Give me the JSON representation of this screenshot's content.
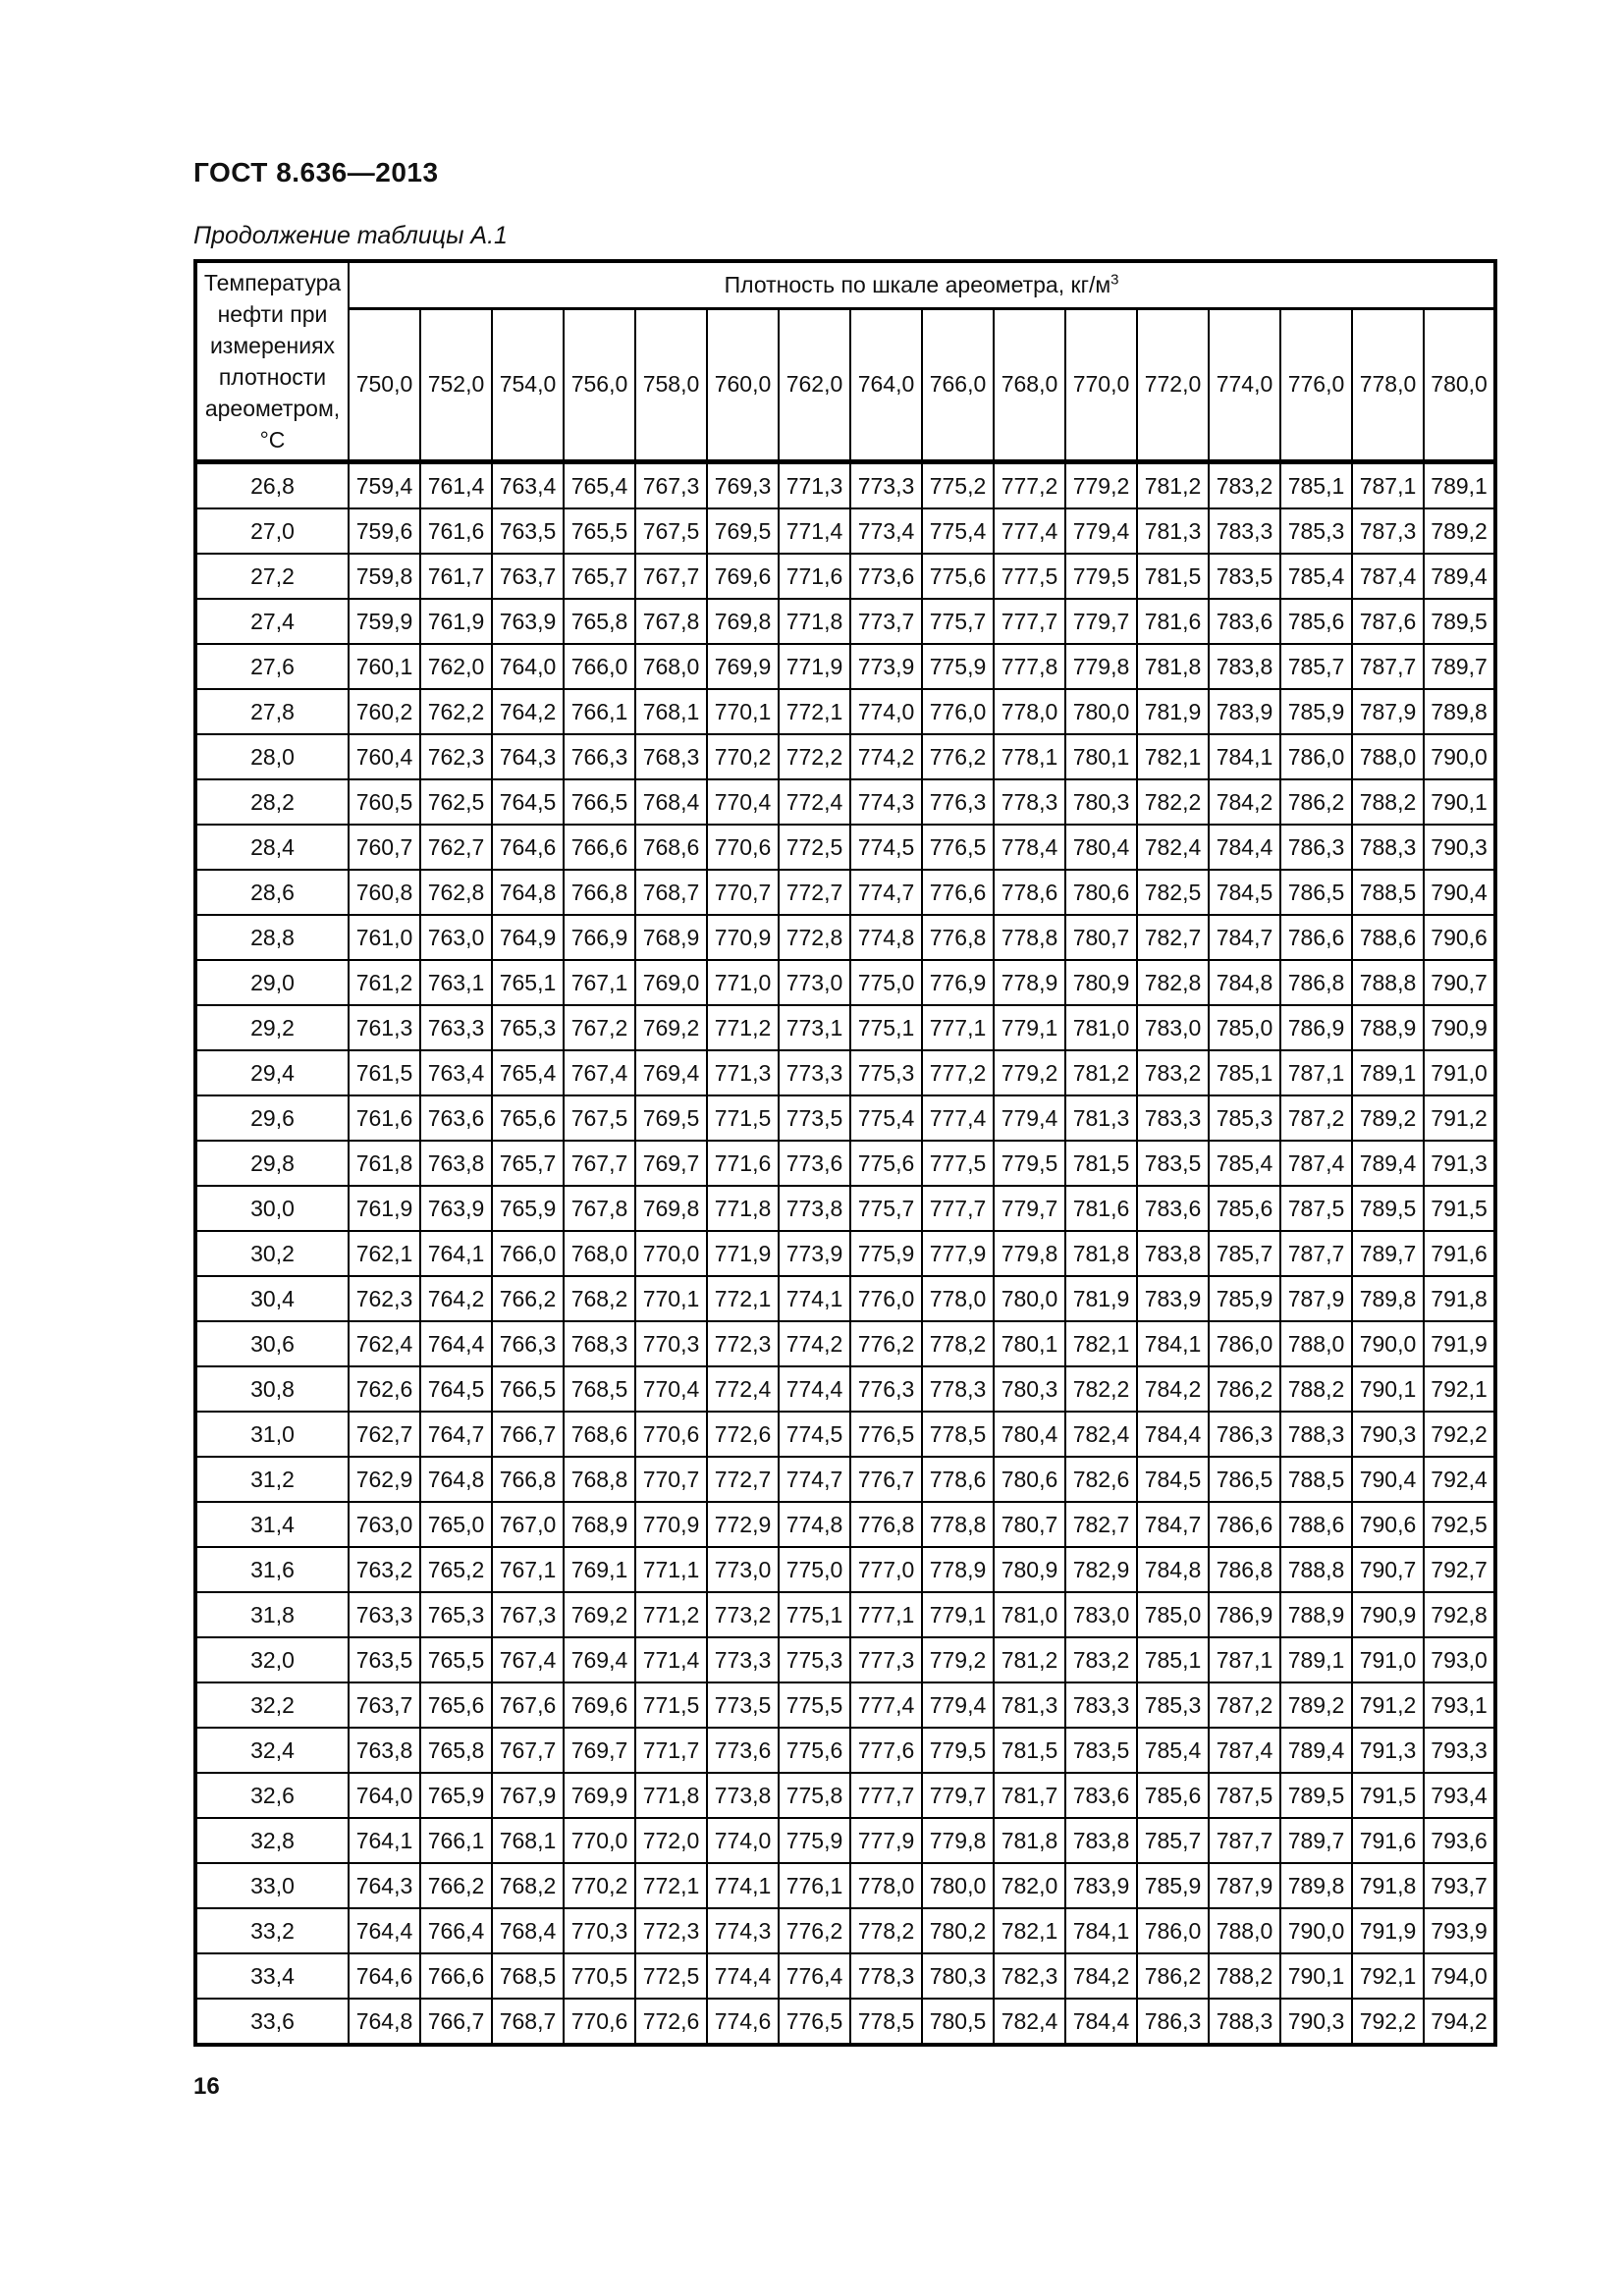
{
  "page": {
    "standard_code": "ГОСТ 8.636—2013",
    "table_caption": "Продолжение таблицы А.1",
    "page_number": "16"
  },
  "table": {
    "temp_header": "Температура нефти при измерениях плотности ареометром, °С",
    "density_header_text": "Плотность по шкале ареометра, кг/м",
    "density_header_sup": "3",
    "density_columns": [
      "750,0",
      "752,0",
      "754,0",
      "756,0",
      "758,0",
      "760,0",
      "762,0",
      "764,0",
      "766,0",
      "768,0",
      "770,0",
      "772,0",
      "774,0",
      "776,0",
      "778,0",
      "780,0"
    ],
    "rows": [
      {
        "temp": "26,8",
        "values": [
          "759,4",
          "761,4",
          "763,4",
          "765,4",
          "767,3",
          "769,3",
          "771,3",
          "773,3",
          "775,2",
          "777,2",
          "779,2",
          "781,2",
          "783,2",
          "785,1",
          "787,1",
          "789,1"
        ]
      },
      {
        "temp": "27,0",
        "values": [
          "759,6",
          "761,6",
          "763,5",
          "765,5",
          "767,5",
          "769,5",
          "771,4",
          "773,4",
          "775,4",
          "777,4",
          "779,4",
          "781,3",
          "783,3",
          "785,3",
          "787,3",
          "789,2"
        ]
      },
      {
        "temp": "27,2",
        "values": [
          "759,8",
          "761,7",
          "763,7",
          "765,7",
          "767,7",
          "769,6",
          "771,6",
          "773,6",
          "775,6",
          "777,5",
          "779,5",
          "781,5",
          "783,5",
          "785,4",
          "787,4",
          "789,4"
        ]
      },
      {
        "temp": "27,4",
        "values": [
          "759,9",
          "761,9",
          "763,9",
          "765,8",
          "767,8",
          "769,8",
          "771,8",
          "773,7",
          "775,7",
          "777,7",
          "779,7",
          "781,6",
          "783,6",
          "785,6",
          "787,6",
          "789,5"
        ]
      },
      {
        "temp": "27,6",
        "values": [
          "760,1",
          "762,0",
          "764,0",
          "766,0",
          "768,0",
          "769,9",
          "771,9",
          "773,9",
          "775,9",
          "777,8",
          "779,8",
          "781,8",
          "783,8",
          "785,7",
          "787,7",
          "789,7"
        ]
      },
      {
        "temp": "27,8",
        "values": [
          "760,2",
          "762,2",
          "764,2",
          "766,1",
          "768,1",
          "770,1",
          "772,1",
          "774,0",
          "776,0",
          "778,0",
          "780,0",
          "781,9",
          "783,9",
          "785,9",
          "787,9",
          "789,8"
        ]
      },
      {
        "temp": "28,0",
        "values": [
          "760,4",
          "762,3",
          "764,3",
          "766,3",
          "768,3",
          "770,2",
          "772,2",
          "774,2",
          "776,2",
          "778,1",
          "780,1",
          "782,1",
          "784,1",
          "786,0",
          "788,0",
          "790,0"
        ]
      },
      {
        "temp": "28,2",
        "values": [
          "760,5",
          "762,5",
          "764,5",
          "766,5",
          "768,4",
          "770,4",
          "772,4",
          "774,3",
          "776,3",
          "778,3",
          "780,3",
          "782,2",
          "784,2",
          "786,2",
          "788,2",
          "790,1"
        ]
      },
      {
        "temp": "28,4",
        "values": [
          "760,7",
          "762,7",
          "764,6",
          "766,6",
          "768,6",
          "770,6",
          "772,5",
          "774,5",
          "776,5",
          "778,4",
          "780,4",
          "782,4",
          "784,4",
          "786,3",
          "788,3",
          "790,3"
        ]
      },
      {
        "temp": "28,6",
        "values": [
          "760,8",
          "762,8",
          "764,8",
          "766,8",
          "768,7",
          "770,7",
          "772,7",
          "774,7",
          "776,6",
          "778,6",
          "780,6",
          "782,5",
          "784,5",
          "786,5",
          "788,5",
          "790,4"
        ]
      },
      {
        "temp": "28,8",
        "values": [
          "761,0",
          "763,0",
          "764,9",
          "766,9",
          "768,9",
          "770,9",
          "772,8",
          "774,8",
          "776,8",
          "778,8",
          "780,7",
          "782,7",
          "784,7",
          "786,6",
          "788,6",
          "790,6"
        ]
      },
      {
        "temp": "29,0",
        "values": [
          "761,2",
          "763,1",
          "765,1",
          "767,1",
          "769,0",
          "771,0",
          "773,0",
          "775,0",
          "776,9",
          "778,9",
          "780,9",
          "782,8",
          "784,8",
          "786,8",
          "788,8",
          "790,7"
        ]
      },
      {
        "temp": "29,2",
        "values": [
          "761,3",
          "763,3",
          "765,3",
          "767,2",
          "769,2",
          "771,2",
          "773,1",
          "775,1",
          "777,1",
          "779,1",
          "781,0",
          "783,0",
          "785,0",
          "786,9",
          "788,9",
          "790,9"
        ]
      },
      {
        "temp": "29,4",
        "values": [
          "761,5",
          "763,4",
          "765,4",
          "767,4",
          "769,4",
          "771,3",
          "773,3",
          "775,3",
          "777,2",
          "779,2",
          "781,2",
          "783,2",
          "785,1",
          "787,1",
          "789,1",
          "791,0"
        ]
      },
      {
        "temp": "29,6",
        "values": [
          "761,6",
          "763,6",
          "765,6",
          "767,5",
          "769,5",
          "771,5",
          "773,5",
          "775,4",
          "777,4",
          "779,4",
          "781,3",
          "783,3",
          "785,3",
          "787,2",
          "789,2",
          "791,2"
        ]
      },
      {
        "temp": "29,8",
        "values": [
          "761,8",
          "763,8",
          "765,7",
          "767,7",
          "769,7",
          "771,6",
          "773,6",
          "775,6",
          "777,5",
          "779,5",
          "781,5",
          "783,5",
          "785,4",
          "787,4",
          "789,4",
          "791,3"
        ]
      },
      {
        "temp": "30,0",
        "values": [
          "761,9",
          "763,9",
          "765,9",
          "767,8",
          "769,8",
          "771,8",
          "773,8",
          "775,7",
          "777,7",
          "779,7",
          "781,6",
          "783,6",
          "785,6",
          "787,5",
          "789,5",
          "791,5"
        ]
      },
      {
        "temp": "30,2",
        "values": [
          "762,1",
          "764,1",
          "766,0",
          "768,0",
          "770,0",
          "771,9",
          "773,9",
          "775,9",
          "777,9",
          "779,8",
          "781,8",
          "783,8",
          "785,7",
          "787,7",
          "789,7",
          "791,6"
        ]
      },
      {
        "temp": "30,4",
        "values": [
          "762,3",
          "764,2",
          "766,2",
          "768,2",
          "770,1",
          "772,1",
          "774,1",
          "776,0",
          "778,0",
          "780,0",
          "781,9",
          "783,9",
          "785,9",
          "787,9",
          "789,8",
          "791,8"
        ]
      },
      {
        "temp": "30,6",
        "values": [
          "762,4",
          "764,4",
          "766,3",
          "768,3",
          "770,3",
          "772,3",
          "774,2",
          "776,2",
          "778,2",
          "780,1",
          "782,1",
          "784,1",
          "786,0",
          "788,0",
          "790,0",
          "791,9"
        ]
      },
      {
        "temp": "30,8",
        "values": [
          "762,6",
          "764,5",
          "766,5",
          "768,5",
          "770,4",
          "772,4",
          "774,4",
          "776,3",
          "778,3",
          "780,3",
          "782,2",
          "784,2",
          "786,2",
          "788,2",
          "790,1",
          "792,1"
        ]
      },
      {
        "temp": "31,0",
        "values": [
          "762,7",
          "764,7",
          "766,7",
          "768,6",
          "770,6",
          "772,6",
          "774,5",
          "776,5",
          "778,5",
          "780,4",
          "782,4",
          "784,4",
          "786,3",
          "788,3",
          "790,3",
          "792,2"
        ]
      },
      {
        "temp": "31,2",
        "values": [
          "762,9",
          "764,8",
          "766,8",
          "768,8",
          "770,7",
          "772,7",
          "774,7",
          "776,7",
          "778,6",
          "780,6",
          "782,6",
          "784,5",
          "786,5",
          "788,5",
          "790,4",
          "792,4"
        ]
      },
      {
        "temp": "31,4",
        "values": [
          "763,0",
          "765,0",
          "767,0",
          "768,9",
          "770,9",
          "772,9",
          "774,8",
          "776,8",
          "778,8",
          "780,7",
          "782,7",
          "784,7",
          "786,6",
          "788,6",
          "790,6",
          "792,5"
        ]
      },
      {
        "temp": "31,6",
        "values": [
          "763,2",
          "765,2",
          "767,1",
          "769,1",
          "771,1",
          "773,0",
          "775,0",
          "777,0",
          "778,9",
          "780,9",
          "782,9",
          "784,8",
          "786,8",
          "788,8",
          "790,7",
          "792,7"
        ]
      },
      {
        "temp": "31,8",
        "values": [
          "763,3",
          "765,3",
          "767,3",
          "769,2",
          "771,2",
          "773,2",
          "775,1",
          "777,1",
          "779,1",
          "781,0",
          "783,0",
          "785,0",
          "786,9",
          "788,9",
          "790,9",
          "792,8"
        ]
      },
      {
        "temp": "32,0",
        "values": [
          "763,5",
          "765,5",
          "767,4",
          "769,4",
          "771,4",
          "773,3",
          "775,3",
          "777,3",
          "779,2",
          "781,2",
          "783,2",
          "785,1",
          "787,1",
          "789,1",
          "791,0",
          "793,0"
        ]
      },
      {
        "temp": "32,2",
        "values": [
          "763,7",
          "765,6",
          "767,6",
          "769,6",
          "771,5",
          "773,5",
          "775,5",
          "777,4",
          "779,4",
          "781,3",
          "783,3",
          "785,3",
          "787,2",
          "789,2",
          "791,2",
          "793,1"
        ]
      },
      {
        "temp": "32,4",
        "values": [
          "763,8",
          "765,8",
          "767,7",
          "769,7",
          "771,7",
          "773,6",
          "775,6",
          "777,6",
          "779,5",
          "781,5",
          "783,5",
          "785,4",
          "787,4",
          "789,4",
          "791,3",
          "793,3"
        ]
      },
      {
        "temp": "32,6",
        "values": [
          "764,0",
          "765,9",
          "767,9",
          "769,9",
          "771,8",
          "773,8",
          "775,8",
          "777,7",
          "779,7",
          "781,7",
          "783,6",
          "785,6",
          "787,5",
          "789,5",
          "791,5",
          "793,4"
        ]
      },
      {
        "temp": "32,8",
        "values": [
          "764,1",
          "766,1",
          "768,1",
          "770,0",
          "772,0",
          "774,0",
          "775,9",
          "777,9",
          "779,8",
          "781,8",
          "783,8",
          "785,7",
          "787,7",
          "789,7",
          "791,6",
          "793,6"
        ]
      },
      {
        "temp": "33,0",
        "values": [
          "764,3",
          "766,2",
          "768,2",
          "770,2",
          "772,1",
          "774,1",
          "776,1",
          "778,0",
          "780,0",
          "782,0",
          "783,9",
          "785,9",
          "787,9",
          "789,8",
          "791,8",
          "793,7"
        ]
      },
      {
        "temp": "33,2",
        "values": [
          "764,4",
          "766,4",
          "768,4",
          "770,3",
          "772,3",
          "774,3",
          "776,2",
          "778,2",
          "780,2",
          "782,1",
          "784,1",
          "786,0",
          "788,0",
          "790,0",
          "791,9",
          "793,9"
        ]
      },
      {
        "temp": "33,4",
        "values": [
          "764,6",
          "766,6",
          "768,5",
          "770,5",
          "772,5",
          "774,4",
          "776,4",
          "778,3",
          "780,3",
          "782,3",
          "784,2",
          "786,2",
          "788,2",
          "790,1",
          "792,1",
          "794,0"
        ]
      },
      {
        "temp": "33,6",
        "values": [
          "764,8",
          "766,7",
          "768,7",
          "770,6",
          "772,6",
          "774,6",
          "776,5",
          "778,5",
          "780,5",
          "782,4",
          "784,4",
          "786,3",
          "788,3",
          "790,3",
          "792,2",
          "794,2"
        ]
      }
    ]
  }
}
